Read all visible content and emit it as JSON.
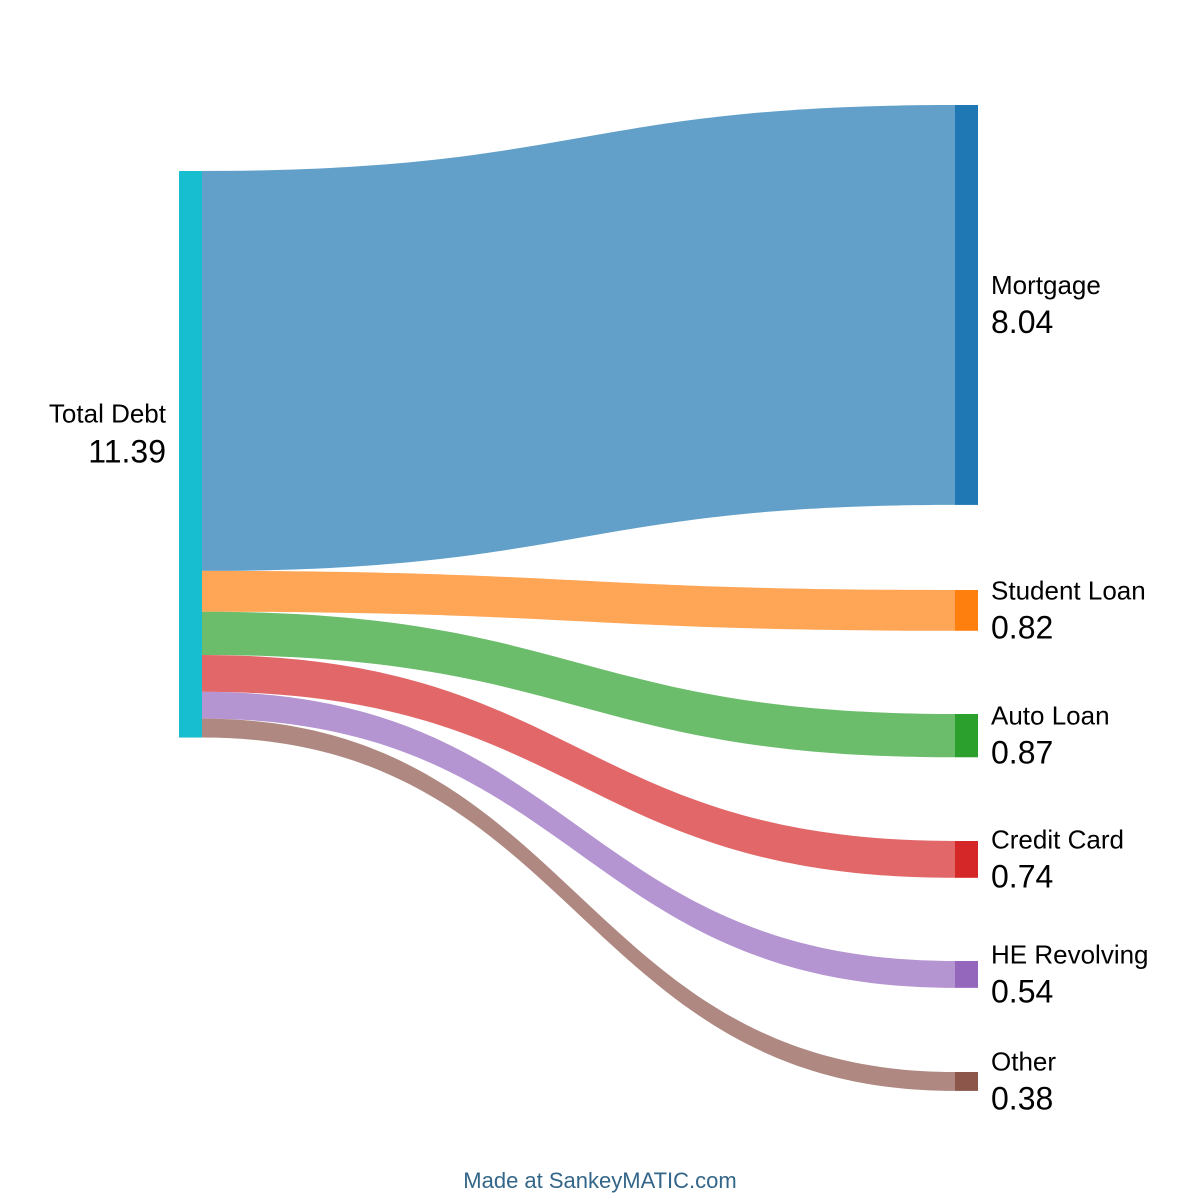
{
  "credit": "Made at SankeyMATIC.com",
  "colors": {
    "source": "#17becf",
    "mortgage": "#1f77b4",
    "student_loan": "#ff7f0e",
    "auto_loan": "#2ca02c",
    "credit_card": "#d62728",
    "he_revolving": "#9467bd",
    "other": "#8c564b"
  },
  "source": {
    "label": "Total Debt",
    "value": "11.39"
  },
  "targets": [
    {
      "key": "mortgage",
      "label": "Mortgage",
      "value": "8.04",
      "amount": 8.04
    },
    {
      "key": "student_loan",
      "label": "Student Loan",
      "value": "0.82",
      "amount": 0.82
    },
    {
      "key": "auto_loan",
      "label": "Auto Loan",
      "value": "0.87",
      "amount": 0.87
    },
    {
      "key": "credit_card",
      "label": "Credit Card",
      "value": "0.74",
      "amount": 0.74
    },
    {
      "key": "he_revolving",
      "label": "HE Revolving",
      "value": "0.54",
      "amount": 0.54
    },
    {
      "key": "other",
      "label": "Other",
      "value": "0.38",
      "amount": 0.38
    }
  ]
}
